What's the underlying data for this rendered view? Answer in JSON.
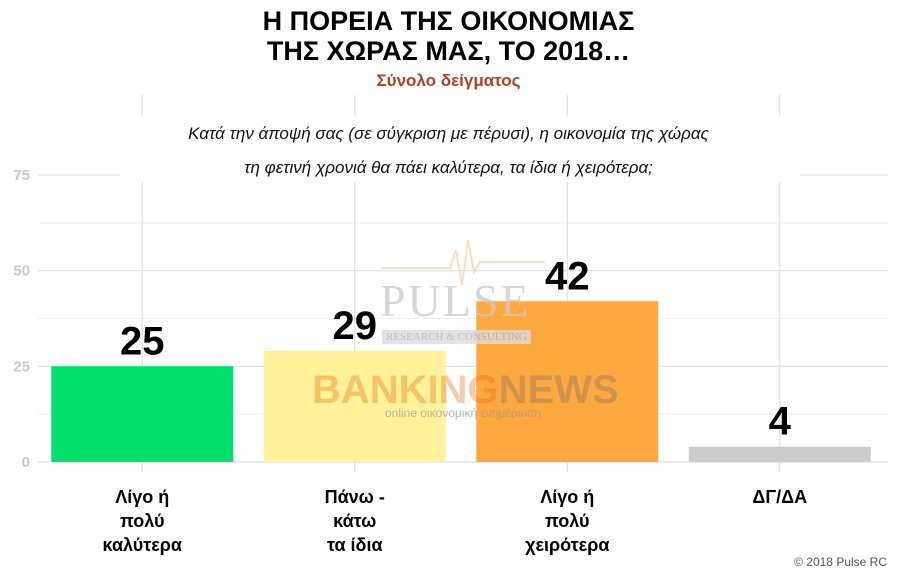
{
  "chart_data": {
    "type": "bar",
    "title": [
      "Η ΠΟΡΕΙΑ ΤΗΣ ΟΙΚΟΝΟΜΙΑΣ",
      "ΤΗΣ ΧΩΡΑΣ ΜΑΣ, ΤΟ 2018…"
    ],
    "subtitle": "Σύνολο δείγματος",
    "question": [
      "Κατά την άποψή σας (σε σύγκριση με πέρυσι), η οικονομία της χώρας",
      "τη φετινή χρονιά θα πάει καλύτερα, τα ίδια ή χειρότερα;"
    ],
    "categories": [
      "Λίγο ή\nπολύ\nκαλύτερα",
      "Πάνω -\nκάτω\nτα ίδια",
      "Λίγο ή\nπολύ\nχειρότερα",
      "ΔΓ/ΔΑ"
    ],
    "values": [
      25,
      29,
      42,
      4
    ],
    "colors": [
      "#00e06b",
      "#fff29a",
      "#ffa83f",
      "#cccccc"
    ],
    "yticks": [
      0,
      25,
      50,
      75
    ],
    "ylim": [
      0,
      75
    ],
    "grid": true
  },
  "watermark": {
    "pulse": "PULSE",
    "pulse_sub": "RESEARCH & CONSULTING",
    "banking": "BANKING",
    "news": "NEWS",
    "banking_sub": "online οικονομική ενημέρωση"
  },
  "credit": "© 2018 Pulse RC"
}
